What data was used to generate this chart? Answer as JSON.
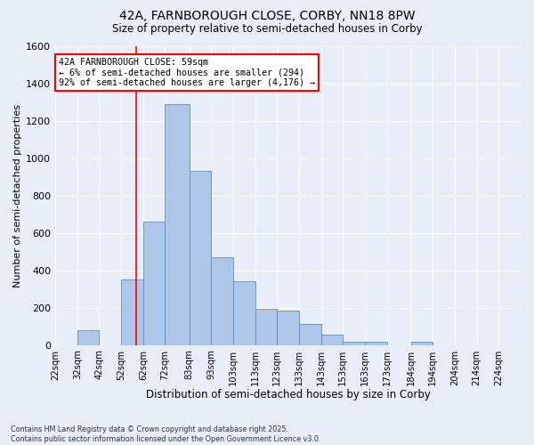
{
  "title_line1": "42A, FARNBOROUGH CLOSE, CORBY, NN18 8PW",
  "title_line2": "Size of property relative to semi-detached houses in Corby",
  "xlabel": "Distribution of semi-detached houses by size in Corby",
  "ylabel": "Number of semi-detached properties",
  "annotation_title": "42A FARNBOROUGH CLOSE: 59sqm",
  "annotation_line2": "← 6% of semi-detached houses are smaller (294)",
  "annotation_line3": "92% of semi-detached houses are larger (4,176) →",
  "footer_line1": "Contains HM Land Registry data © Crown copyright and database right 2025.",
  "footer_line2": "Contains public sector information licensed under the Open Government Licence v3.0.",
  "bar_labels": [
    "22sqm",
    "32sqm",
    "42sqm",
    "52sqm",
    "62sqm",
    "72sqm",
    "83sqm",
    "93sqm",
    "103sqm",
    "113sqm",
    "123sqm",
    "133sqm",
    "143sqm",
    "153sqm",
    "163sqm",
    "173sqm",
    "184sqm",
    "194sqm",
    "204sqm",
    "214sqm",
    "224sqm"
  ],
  "bar_values": [
    0,
    80,
    0,
    350,
    660,
    1290,
    930,
    470,
    340,
    195,
    185,
    115,
    55,
    20,
    20,
    0,
    20,
    0,
    0,
    0,
    0
  ],
  "bar_color": "#aec6e8",
  "bar_edge_color": "#5a8fc0",
  "property_line_x": 59,
  "property_line_color": "red",
  "ylim": [
    0,
    1600
  ],
  "yticks": [
    0,
    200,
    400,
    600,
    800,
    1000,
    1200,
    1400,
    1600
  ],
  "bg_color": "#e8eef8",
  "grid_color": "white",
  "bin_edges": [
    22,
    32,
    42,
    52,
    62,
    72,
    83,
    93,
    103,
    113,
    123,
    133,
    143,
    153,
    163,
    173,
    184,
    194,
    204,
    214,
    224,
    234
  ]
}
